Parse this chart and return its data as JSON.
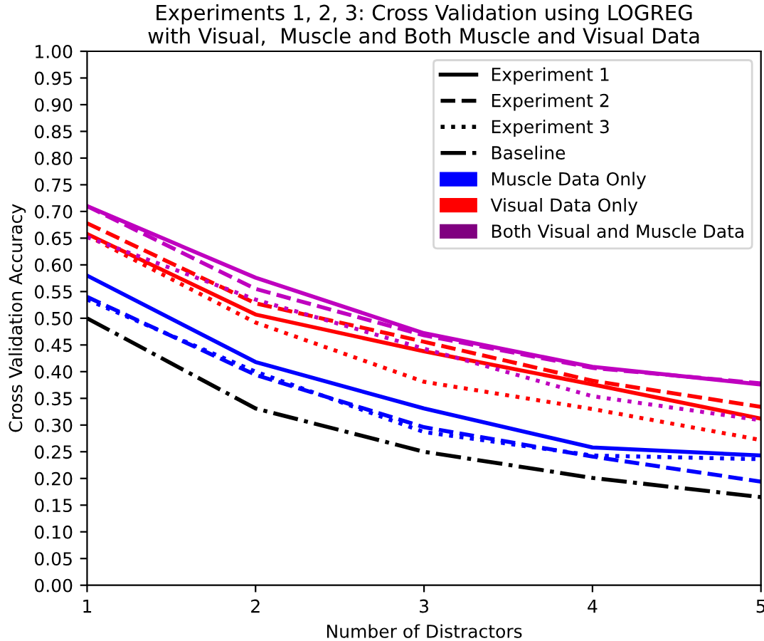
{
  "chart_data": {
    "type": "line",
    "title": "Experiments 1, 2, 3: Cross Validation using LOGREG\nwith Visual,  Muscle and Both Muscle and Visual Data",
    "xlabel": "Number of Distractors",
    "ylabel": "Cross Validation Accuracy",
    "x": [
      1,
      2,
      3,
      4,
      5
    ],
    "xlim": [
      1,
      5
    ],
    "xticks": [
      1,
      2,
      3,
      4,
      5
    ],
    "ylim": [
      0,
      1
    ],
    "yticks": [
      {
        "value": 0,
        "label": "0.00"
      },
      {
        "value": 0.05,
        "label": "0.05"
      },
      {
        "value": 0.1,
        "label": "0.10"
      },
      {
        "value": 0.15,
        "label": "0.15"
      },
      {
        "value": 0.2,
        "label": "0.20"
      },
      {
        "value": 0.25,
        "label": "0.25"
      },
      {
        "value": 0.3,
        "label": "0.30"
      },
      {
        "value": 0.35,
        "label": "0.35"
      },
      {
        "value": 0.4,
        "label": "0.40"
      },
      {
        "value": 0.45,
        "label": "0.45"
      },
      {
        "value": 0.5,
        "label": "0.50"
      },
      {
        "value": 0.55,
        "label": "0.55"
      },
      {
        "value": 0.6,
        "label": "0.60"
      },
      {
        "value": 0.65,
        "label": "0.65"
      },
      {
        "value": 0.7,
        "label": "0.70"
      },
      {
        "value": 0.75,
        "label": "0.75"
      },
      {
        "value": 0.8,
        "label": "0.80"
      },
      {
        "value": 0.85,
        "label": "0.85"
      },
      {
        "value": 0.9,
        "label": "0.90"
      },
      {
        "value": 0.95,
        "label": "0.95"
      },
      {
        "value": 1,
        "label": "1.00"
      }
    ],
    "grid": false,
    "legend": "top right",
    "marker": "none",
    "series": [
      {
        "name": "Experiment 1",
        "color": "#000000",
        "line_style": "solid",
        "values": [
          null,
          null,
          null,
          null,
          null
        ]
      },
      {
        "name": "Experiment 2",
        "color": "#000000",
        "line_style": "dashed",
        "values": [
          null,
          null,
          null,
          null,
          null
        ]
      },
      {
        "name": "Experiment 3",
        "color": "#000000",
        "line_style": "dotted",
        "values": [
          null,
          null,
          null,
          null,
          null
        ]
      },
      {
        "name": "Baseline",
        "color": "#000000",
        "line_style": "dashdot",
        "values": [
          0.5,
          0.331,
          0.25,
          0.201,
          0.165
        ]
      },
      {
        "name": "Muscle Data Only",
        "type": "bar",
        "color": "#0000ff",
        "values": [
          null,
          null,
          null,
          null,
          null
        ]
      },
      {
        "name": "Visual Data Only",
        "type": "bar",
        "color": "#ff0000",
        "values": [
          null,
          null,
          null,
          null,
          null
        ]
      },
      {
        "name": "Both Visual and Muscle Data",
        "type": "bar",
        "color": "#800080",
        "values": [
          null,
          null,
          null,
          null,
          null
        ]
      },
      {
        "color": "#0000ff",
        "line_style": "solid",
        "values": [
          0.58,
          0.418,
          0.331,
          0.258,
          0.243
        ]
      },
      {
        "color": "#0000ff",
        "line_style": "dashed",
        "values": [
          0.54,
          0.394,
          0.296,
          0.241,
          0.194
        ]
      },
      {
        "color": "#0000ff",
        "line_style": "dotted",
        "values": [
          0.535,
          0.4,
          0.287,
          0.243,
          0.236
        ]
      },
      {
        "color": "#ff0000",
        "line_style": "solid",
        "values": [
          0.658,
          0.507,
          0.438,
          0.376,
          0.312
        ]
      },
      {
        "color": "#ff0000",
        "line_style": "dashed",
        "values": [
          0.678,
          0.528,
          0.456,
          0.383,
          0.334
        ]
      },
      {
        "color": "#ff0000",
        "line_style": "dotted",
        "values": [
          0.655,
          0.492,
          0.381,
          0.33,
          0.272
        ]
      },
      {
        "color": "#bf00bf",
        "line_style": "solid",
        "values": [
          0.71,
          0.576,
          0.472,
          0.409,
          0.376
        ]
      },
      {
        "color": "#bf00bf",
        "line_style": "dashed",
        "values": [
          0.71,
          0.555,
          0.468,
          0.407,
          0.378
        ]
      },
      {
        "color": "#bf00bf",
        "line_style": "dotted",
        "values": [
          0.652,
          0.535,
          0.443,
          0.354,
          0.309
        ]
      }
    ]
  }
}
